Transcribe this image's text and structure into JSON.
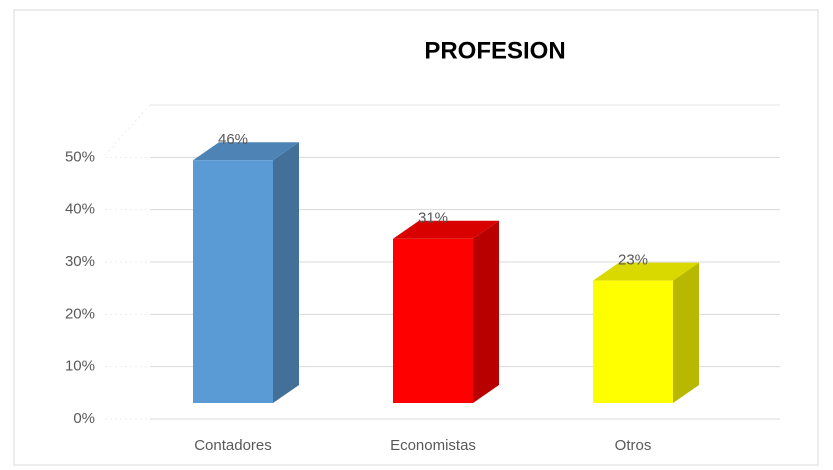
{
  "chart_data": {
    "type": "bar3d",
    "title": "PROFESION",
    "categories": [
      "Contadores",
      "Economistas",
      "Otros"
    ],
    "values": [
      46,
      31,
      23
    ],
    "value_labels": [
      "46%",
      "31%",
      "23%"
    ],
    "colors": [
      "#5b9bd5",
      "#ff0000",
      "#ffff00"
    ],
    "ylim": [
      0,
      60
    ],
    "yticks": [
      {
        "value": 0,
        "label": "0%"
      },
      {
        "value": 10,
        "label": "10%"
      },
      {
        "value": 20,
        "label": "20%"
      },
      {
        "value": 30,
        "label": "30%"
      },
      {
        "value": 40,
        "label": "40%"
      },
      {
        "value": 50,
        "label": "50%"
      }
    ],
    "grid": true
  }
}
